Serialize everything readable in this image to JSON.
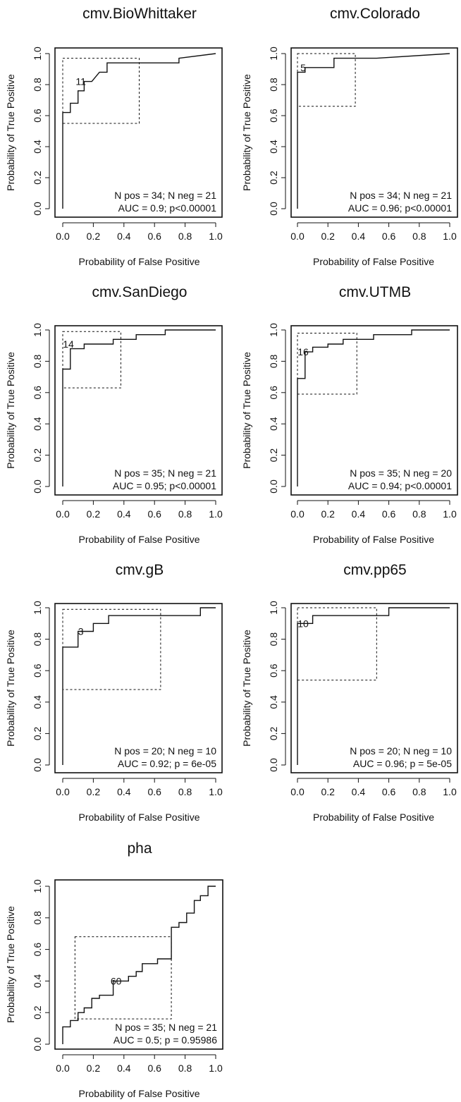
{
  "figure": {
    "panels": [
      {
        "title": "cmv.BioWhittaker",
        "xlabel": "Probability of False Positive",
        "ylabel": "Probability of True Positive",
        "n_text": "N pos = 34; N neg = 21",
        "auc_text": "AUC = 0.9; p<0.00001",
        "cut_label": "11"
      },
      {
        "title": "cmv.Colorado",
        "xlabel": "Probability of False Positive",
        "ylabel": "Probability of True Positive",
        "n_text": "N pos = 34; N neg = 21",
        "auc_text": "AUC = 0.96; p<0.00001",
        "cut_label": "5"
      },
      {
        "title": "cmv.SanDiego",
        "xlabel": "Probability of False Positive",
        "ylabel": "Probability of True Positive",
        "n_text": "N pos = 35; N neg = 21",
        "auc_text": "AUC = 0.95; p<0.00001",
        "cut_label": "14"
      },
      {
        "title": "cmv.UTMB",
        "xlabel": "Probability of False Positive",
        "ylabel": "Probability of True Positive",
        "n_text": "N pos = 35; N neg = 20",
        "auc_text": "AUC = 0.94; p<0.00001",
        "cut_label": "16"
      },
      {
        "title": "cmv.gB",
        "xlabel": "Probability of False Positive",
        "ylabel": "Probability of True Positive",
        "n_text": "N pos = 20; N neg = 10",
        "auc_text": "AUC = 0.92; p = 6e-05",
        "cut_label": "3"
      },
      {
        "title": "cmv.pp65",
        "xlabel": "Probability of False Positive",
        "ylabel": "Probability of True Positive",
        "n_text": "N pos = 20; N neg = 10",
        "auc_text": "AUC = 0.96; p = 5e-05",
        "cut_label": "10"
      },
      {
        "title": "pha",
        "xlabel": "Probability of False Positive",
        "ylabel": "Probability of True Positive",
        "n_text": "N pos = 35; N neg = 21",
        "auc_text": "AUC = 0.5; p = 0.95986",
        "cut_label": "60"
      }
    ]
  },
  "chart_data": [
    {
      "type": "line",
      "title": "cmv.BioWhittaker",
      "xlabel": "Probability of False Positive",
      "ylabel": "Probability of True Positive",
      "xlim": [
        0,
        1
      ],
      "ylim": [
        0,
        1
      ],
      "xticks": [
        0.0,
        0.2,
        0.4,
        0.6,
        0.8,
        1.0
      ],
      "yticks": [
        0.0,
        0.2,
        0.4,
        0.6,
        0.8,
        1.0
      ],
      "tick_labels": [
        "0.0",
        "0.2",
        "0.4",
        "0.6",
        "0.8",
        "1.0"
      ],
      "curve": {
        "x": [
          0,
          0,
          0,
          0.05,
          0.05,
          0.1,
          0.1,
          0.1,
          0.14,
          0.14,
          0.19,
          0.19,
          0.24,
          0.24,
          0.29,
          0.29,
          0.76,
          0.76,
          1.0
        ],
        "y": [
          0,
          0.62,
          0.62,
          0.62,
          0.68,
          0.68,
          0.71,
          0.76,
          0.76,
          0.82,
          0.82,
          0.82,
          0.88,
          0.88,
          0.88,
          0.94,
          0.94,
          0.97,
          1.0
        ]
      },
      "cutoff_box": {
        "x": [
          0,
          0.5
        ],
        "y": [
          0.55,
          0.97
        ]
      },
      "cutoff_point": {
        "x": 0.1,
        "y": 0.82,
        "label": "11"
      },
      "annotations": [
        "N pos = 34; N neg = 21",
        "AUC = 0.9; p<0.00001"
      ]
    },
    {
      "type": "line",
      "title": "cmv.Colorado",
      "xlabel": "Probability of False Positive",
      "ylabel": "Probability of True Positive",
      "xlim": [
        0,
        1
      ],
      "ylim": [
        0,
        1
      ],
      "xticks": [
        0.0,
        0.2,
        0.4,
        0.6,
        0.8,
        1.0
      ],
      "yticks": [
        0.0,
        0.2,
        0.4,
        0.6,
        0.8,
        1.0
      ],
      "tick_labels": [
        "0.0",
        "0.2",
        "0.4",
        "0.6",
        "0.8",
        "1.0"
      ],
      "curve": {
        "x": [
          0,
          0,
          0.05,
          0.05,
          0.24,
          0.24,
          0.52,
          1.0
        ],
        "y": [
          0,
          0.88,
          0.88,
          0.91,
          0.91,
          0.97,
          0.97,
          1.0
        ]
      },
      "cutoff_box": {
        "x": [
          0,
          0.38
        ],
        "y": [
          0.66,
          1.0
        ]
      },
      "cutoff_point": {
        "x": 0.0,
        "y": 0.91,
        "label": "5"
      },
      "annotations": [
        "N pos = 34; N neg = 21",
        "AUC = 0.96; p<0.00001"
      ]
    },
    {
      "type": "line",
      "title": "cmv.SanDiego",
      "xlabel": "Probability of False Positive",
      "ylabel": "Probability of True Positive",
      "xlim": [
        0,
        1
      ],
      "ylim": [
        0,
        1
      ],
      "xticks": [
        0.0,
        0.2,
        0.4,
        0.6,
        0.8,
        1.0
      ],
      "yticks": [
        0.0,
        0.2,
        0.4,
        0.6,
        0.8,
        1.0
      ],
      "tick_labels": [
        "0.0",
        "0.2",
        "0.4",
        "0.6",
        "0.8",
        "1.0"
      ],
      "curve": {
        "x": [
          0,
          0,
          0.05,
          0.05,
          0.14,
          0.14,
          0.33,
          0.33,
          0.48,
          0.48,
          0.67,
          0.67,
          1.0
        ],
        "y": [
          0,
          0.75,
          0.75,
          0.88,
          0.88,
          0.91,
          0.91,
          0.94,
          0.94,
          0.97,
          0.97,
          1.0,
          1.0
        ]
      },
      "cutoff_box": {
        "x": [
          0,
          0.38
        ],
        "y": [
          0.63,
          0.99
        ]
      },
      "cutoff_point": {
        "x": 0.0,
        "y": 0.91,
        "label": "14"
      },
      "annotations": [
        "N pos = 35; N neg = 21",
        "AUC = 0.95; p<0.00001"
      ]
    },
    {
      "type": "line",
      "title": "cmv.UTMB",
      "xlabel": "Probability of False Positive",
      "ylabel": "Probability of True Positive",
      "xlim": [
        0,
        1
      ],
      "ylim": [
        0,
        1
      ],
      "xticks": [
        0.0,
        0.2,
        0.4,
        0.6,
        0.8,
        1.0
      ],
      "yticks": [
        0.0,
        0.2,
        0.4,
        0.6,
        0.8,
        1.0
      ],
      "tick_labels": [
        "0.0",
        "0.2",
        "0.4",
        "0.6",
        "0.8",
        "1.0"
      ],
      "curve": {
        "x": [
          0,
          0,
          0.05,
          0.05,
          0.1,
          0.1,
          0.2,
          0.2,
          0.3,
          0.3,
          0.5,
          0.5,
          0.75,
          0.75,
          1.0
        ],
        "y": [
          0,
          0.69,
          0.69,
          0.86,
          0.86,
          0.89,
          0.89,
          0.91,
          0.91,
          0.94,
          0.94,
          0.97,
          0.97,
          1.0,
          1.0
        ]
      },
      "cutoff_box": {
        "x": [
          0,
          0.39
        ],
        "y": [
          0.59,
          0.98
        ]
      },
      "cutoff_point": {
        "x": 0.0,
        "y": 0.86,
        "label": "16"
      },
      "annotations": [
        "N pos = 35; N neg = 20",
        "AUC = 0.94; p<0.00001"
      ]
    },
    {
      "type": "line",
      "title": "cmv.gB",
      "xlabel": "Probability of False Positive",
      "ylabel": "Probability of True Positive",
      "xlim": [
        0,
        1
      ],
      "ylim": [
        0,
        1
      ],
      "xticks": [
        0.0,
        0.2,
        0.4,
        0.6,
        0.8,
        1.0
      ],
      "yticks": [
        0.0,
        0.2,
        0.4,
        0.6,
        0.8,
        1.0
      ],
      "tick_labels": [
        "0.0",
        "0.2",
        "0.4",
        "0.6",
        "0.8",
        "1.0"
      ],
      "curve": {
        "x": [
          0,
          0,
          0.1,
          0.1,
          0.2,
          0.2,
          0.3,
          0.3,
          0.9,
          0.9,
          1.0
        ],
        "y": [
          0,
          0.75,
          0.75,
          0.85,
          0.85,
          0.9,
          0.9,
          0.95,
          0.95,
          1.0,
          1.0
        ]
      },
      "cutoff_box": {
        "x": [
          0,
          0.64
        ],
        "y": [
          0.48,
          0.99
        ]
      },
      "cutoff_point": {
        "x": 0.1,
        "y": 0.85,
        "label": "3"
      },
      "annotations": [
        "N pos = 20; N neg = 10",
        "AUC = 0.92; p = 6e-05"
      ]
    },
    {
      "type": "line",
      "title": "cmv.pp65",
      "xlabel": "Probability of False Positive",
      "ylabel": "Probability of True Positive",
      "xlim": [
        0,
        1
      ],
      "ylim": [
        0,
        1
      ],
      "xticks": [
        0.0,
        0.2,
        0.4,
        0.6,
        0.8,
        1.0
      ],
      "yticks": [
        0.0,
        0.2,
        0.4,
        0.6,
        0.8,
        1.0
      ],
      "tick_labels": [
        "0.0",
        "0.2",
        "0.4",
        "0.6",
        "0.8",
        "1.0"
      ],
      "curve": {
        "x": [
          0,
          0,
          0.1,
          0.1,
          0.6,
          0.6,
          1.0
        ],
        "y": [
          0,
          0.9,
          0.9,
          0.95,
          0.95,
          1.0,
          1.0
        ]
      },
      "cutoff_box": {
        "x": [
          0,
          0.52
        ],
        "y": [
          0.54,
          1.0
        ]
      },
      "cutoff_point": {
        "x": 0.0,
        "y": 0.9,
        "label": "10"
      },
      "annotations": [
        "N pos = 20; N neg = 10",
        "AUC = 0.96; p = 5e-05"
      ]
    },
    {
      "type": "line",
      "title": "pha",
      "xlabel": "Probability of False Positive",
      "ylabel": "Probability of True Positive",
      "xlim": [
        0,
        1
      ],
      "ylim": [
        0,
        1
      ],
      "xticks": [
        0.0,
        0.2,
        0.4,
        0.6,
        0.8,
        1.0
      ],
      "yticks": [
        0.0,
        0.2,
        0.4,
        0.6,
        0.8,
        1.0
      ],
      "tick_labels": [
        "0.0",
        "0.2",
        "0.4",
        "0.6",
        "0.8",
        "1.0"
      ],
      "curve": {
        "x": [
          0,
          0,
          0.05,
          0.05,
          0.1,
          0.1,
          0.14,
          0.14,
          0.19,
          0.19,
          0.24,
          0.24,
          0.33,
          0.33,
          0.43,
          0.43,
          0.48,
          0.48,
          0.52,
          0.52,
          0.62,
          0.62,
          0.71,
          0.71,
          0.76,
          0.76,
          0.81,
          0.81,
          0.86,
          0.86,
          0.9,
          0.9,
          0.95,
          0.95,
          1.0
        ],
        "y": [
          0,
          0.11,
          0.11,
          0.15,
          0.15,
          0.2,
          0.2,
          0.23,
          0.23,
          0.29,
          0.29,
          0.31,
          0.31,
          0.4,
          0.4,
          0.43,
          0.43,
          0.46,
          0.46,
          0.51,
          0.51,
          0.54,
          0.54,
          0.74,
          0.74,
          0.77,
          0.77,
          0.83,
          0.83,
          0.91,
          0.91,
          0.94,
          0.94,
          1.0,
          1.0
        ]
      },
      "cutoff_box": {
        "x": [
          0.08,
          0.71
        ],
        "y": [
          0.16,
          0.68
        ]
      },
      "cutoff_point": {
        "x": 0.33,
        "y": 0.4,
        "label": "60"
      },
      "annotations": [
        "N pos = 35; N neg = 21",
        "AUC = 0.5; p = 0.95986"
      ]
    }
  ]
}
